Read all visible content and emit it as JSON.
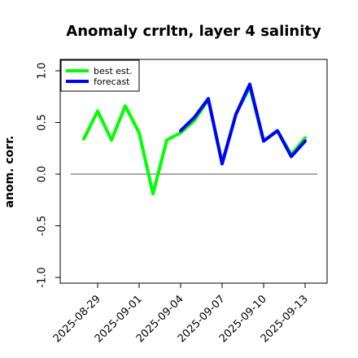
{
  "chart_data": {
    "type": "line",
    "title": "Anomaly crrltn, layer 4 salinity",
    "ylabel": "anom. corr.",
    "xlabel": "",
    "ylim": [
      -1.0,
      1.0
    ],
    "yticks": [
      "-1.0",
      "-0.5",
      "0.0",
      "0.5",
      "1.0"
    ],
    "xticks": [
      "2025-08-29",
      "2025-09-01",
      "2025-09-04",
      "2025-09-07",
      "2025-09-10",
      "2025-09-13"
    ],
    "highlight_xtick": "2025-09-04",
    "highlight_color": "#228b22",
    "zero_line": 0.0,
    "legend_position": "top-left",
    "series": [
      {
        "name": "best est.",
        "color": "#00ff00",
        "x": [
          "2025-08-28",
          "2025-08-29",
          "2025-08-30",
          "2025-08-31",
          "2025-09-01",
          "2025-09-02",
          "2025-09-03",
          "2025-09-04",
          "2025-09-05",
          "2025-09-06",
          "2025-09-07",
          "2025-09-08",
          "2025-09-09",
          "2025-09-10",
          "2025-09-11",
          "2025-09-12",
          "2025-09-13"
        ],
        "values": [
          0.34,
          0.61,
          0.33,
          0.66,
          0.4,
          -0.19,
          0.33,
          0.4,
          0.52,
          0.72,
          0.11,
          0.58,
          0.84,
          0.32,
          0.42,
          0.19,
          0.35
        ]
      },
      {
        "name": "forecast",
        "color": "#0000ff",
        "x": [
          "2025-09-04",
          "2025-09-05",
          "2025-09-06",
          "2025-09-07",
          "2025-09-08",
          "2025-09-09",
          "2025-09-10",
          "2025-09-11",
          "2025-09-12",
          "2025-09-13"
        ],
        "values": [
          0.42,
          0.55,
          0.73,
          0.1,
          0.58,
          0.87,
          0.32,
          0.42,
          0.17,
          0.32
        ]
      }
    ]
  }
}
